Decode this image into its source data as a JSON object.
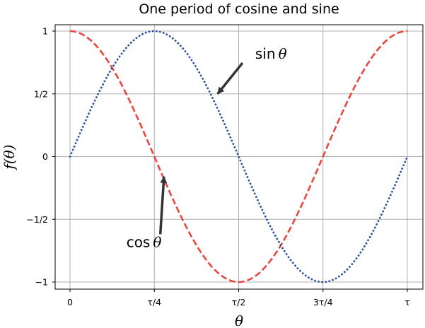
{
  "chart_data": {
    "type": "line",
    "title": "One period of cosine and sine",
    "xlabel": "θ",
    "ylabel": "f(θ)",
    "xlim": [
      0,
      6.283185307179586
    ],
    "ylim": [
      -1.05,
      1.05
    ],
    "grid": true,
    "xticks": [
      {
        "value": 0,
        "label": "0"
      },
      {
        "value": 1.5707963267948966,
        "label": "τ/4"
      },
      {
        "value": 3.141592653589793,
        "label": "τ/2"
      },
      {
        "value": 4.71238898038469,
        "label": "3τ/4"
      },
      {
        "value": 6.283185307179586,
        "label": "τ"
      }
    ],
    "yticks": [
      {
        "value": 1,
        "label": "1"
      },
      {
        "value": 0.5,
        "label": "1/2"
      },
      {
        "value": 0,
        "label": "0"
      },
      {
        "value": -0.5,
        "label": "−1/2"
      },
      {
        "value": -1,
        "label": "−1"
      }
    ],
    "series": [
      {
        "function": "cos",
        "color": "#e8473f",
        "style": "dashed",
        "x": [
          0,
          0.785,
          1.571,
          2.356,
          3.142,
          3.927,
          4.712,
          5.498,
          6.283
        ],
        "y": [
          1,
          0.707,
          0,
          -0.707,
          -1,
          -0.707,
          0,
          0.707,
          1
        ]
      },
      {
        "function": "sin",
        "color": "#2b4fa3",
        "style": "dotted",
        "x": [
          0,
          0.785,
          1.571,
          2.356,
          3.142,
          3.927,
          4.712,
          5.498,
          6.283
        ],
        "y": [
          0,
          0.707,
          1,
          0.707,
          0,
          -0.707,
          -1,
          -0.707,
          0
        ]
      }
    ],
    "annotations": [
      {
        "text": "sin",
        "symbol": "θ",
        "target": [
          2.75,
          0.5
        ],
        "text_at": [
          3.45,
          0.78
        ]
      },
      {
        "text": "cos",
        "symbol": "θ",
        "target": [
          1.75,
          -0.16
        ],
        "text_at": [
          1.05,
          -0.72
        ]
      }
    ]
  }
}
